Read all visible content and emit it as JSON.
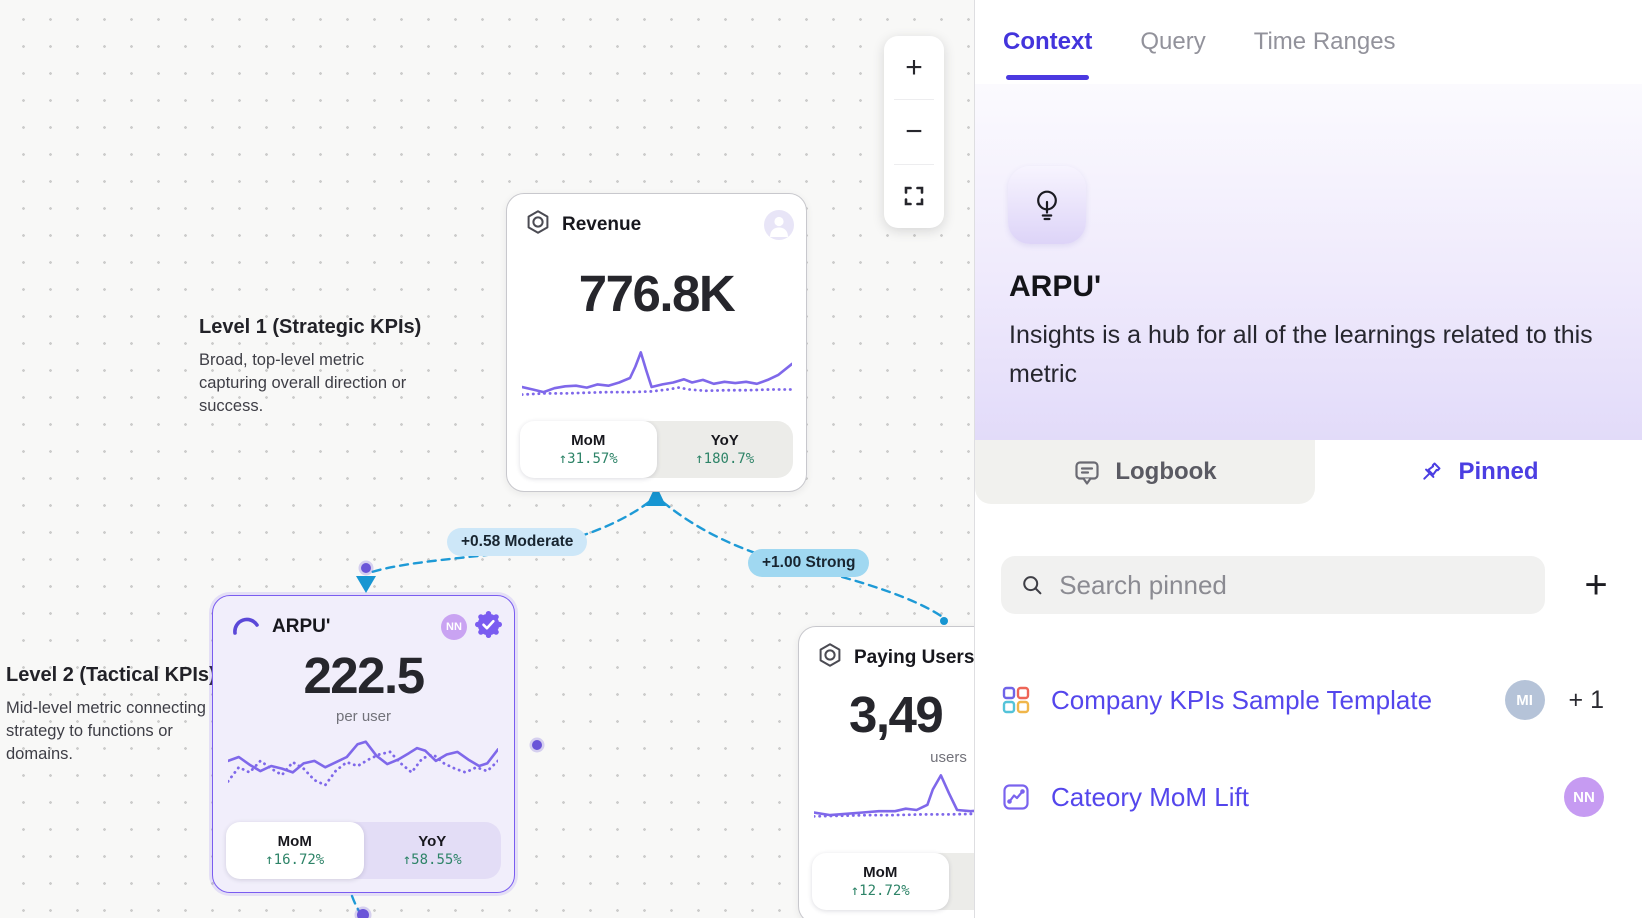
{
  "colors": {
    "accent_purple": "#5b4df0",
    "edge_blue": "#1e9ad6",
    "positive_green": "#2e8468",
    "link_purple": "#5446ec"
  },
  "panel": {
    "tabs": [
      {
        "label": "Context"
      },
      {
        "label": "Query"
      },
      {
        "label": "Time Ranges"
      }
    ],
    "hero": {
      "title": "ARPU'",
      "description": "Insights is a hub for all of the learnings related to this metric"
    },
    "sub_tabs": {
      "logbook": "Logbook",
      "pinned": "Pinned"
    },
    "search": {
      "placeholder": "Search pinned"
    },
    "add_button": "+",
    "pinned_items": [
      {
        "label": "Company KPIs Sample Template",
        "avatar": "MI",
        "extra": "+ 1"
      },
      {
        "label": "Cateory MoM Lift",
        "avatar": "NN",
        "extra": ""
      }
    ]
  },
  "canvas": {
    "zoom_toolbar": {
      "zoom_in": "+",
      "zoom_out": "−"
    },
    "levels": [
      {
        "title": "Level 1 (Strategic KPIs)",
        "description": "Broad, top-level metric capturing overall direction or success."
      },
      {
        "title": "Level 2 (Tactical KPIs)",
        "description": "Mid-level metric connecting strategy to functions or domains."
      }
    ],
    "edge_labels": {
      "left": "+0.58 Moderate",
      "right": "+1.00 Strong"
    },
    "cards": [
      {
        "title": "Revenue",
        "value": "776.8K",
        "unit": "",
        "badge": "",
        "metrics": [
          {
            "label": "MoM",
            "delta": "↑31.57%"
          },
          {
            "label": "YoY",
            "delta": "↑180.7%"
          }
        ],
        "sparkline": {
          "solid": [
            [
              0,
              64
            ],
            [
              4,
              68
            ],
            [
              8,
              72
            ],
            [
              12,
              66
            ],
            [
              16,
              63
            ],
            [
              20,
              62
            ],
            [
              24,
              65
            ],
            [
              28,
              60
            ],
            [
              32,
              62
            ],
            [
              36,
              57
            ],
            [
              40,
              50
            ],
            [
              42,
              32
            ],
            [
              44,
              10
            ],
            [
              46,
              38
            ],
            [
              48,
              64
            ],
            [
              52,
              60
            ],
            [
              56,
              57
            ],
            [
              60,
              52
            ],
            [
              63,
              57
            ],
            [
              67,
              53
            ],
            [
              71,
              59
            ],
            [
              75,
              56
            ],
            [
              79,
              58
            ],
            [
              83,
              56
            ],
            [
              87,
              59
            ],
            [
              91,
              53
            ],
            [
              95,
              45
            ],
            [
              100,
              28
            ]
          ],
          "dotted": [
            [
              0,
              76
            ],
            [
              8,
              74
            ],
            [
              16,
              74
            ],
            [
              24,
              73
            ],
            [
              32,
              72
            ],
            [
              40,
              72
            ],
            [
              48,
              71
            ],
            [
              54,
              68
            ],
            [
              58,
              65
            ],
            [
              62,
              68
            ],
            [
              68,
              70
            ],
            [
              76,
              69
            ],
            [
              84,
              69
            ],
            [
              92,
              68
            ],
            [
              100,
              68
            ]
          ]
        }
      },
      {
        "title": "ARPU'",
        "value": "222.5",
        "unit": "per user",
        "badge": "NN",
        "metrics": [
          {
            "label": "MoM",
            "delta": "↑16.72%"
          },
          {
            "label": "YoY",
            "delta": "↑58.55%"
          }
        ],
        "sparkline": {
          "solid": [
            [
              0,
              42
            ],
            [
              4,
              36
            ],
            [
              8,
              48
            ],
            [
              12,
              58
            ],
            [
              16,
              50
            ],
            [
              20,
              54
            ],
            [
              24,
              60
            ],
            [
              28,
              46
            ],
            [
              32,
              42
            ],
            [
              36,
              52
            ],
            [
              40,
              44
            ],
            [
              44,
              36
            ],
            [
              48,
              16
            ],
            [
              51,
              12
            ],
            [
              55,
              34
            ],
            [
              59,
              47
            ],
            [
              63,
              40
            ],
            [
              67,
              30
            ],
            [
              70,
              22
            ],
            [
              73,
              26
            ],
            [
              77,
              42
            ],
            [
              81,
              32
            ],
            [
              85,
              28
            ],
            [
              89,
              40
            ],
            [
              93,
              50
            ],
            [
              96,
              46
            ],
            [
              100,
              24
            ]
          ],
          "dotted": [
            [
              0,
              74
            ],
            [
              4,
              52
            ],
            [
              8,
              60
            ],
            [
              12,
              42
            ],
            [
              16,
              54
            ],
            [
              20,
              64
            ],
            [
              24,
              44
            ],
            [
              28,
              54
            ],
            [
              32,
              72
            ],
            [
              36,
              80
            ],
            [
              40,
              57
            ],
            [
              44,
              44
            ],
            [
              48,
              50
            ],
            [
              52,
              40
            ],
            [
              56,
              32
            ],
            [
              60,
              28
            ],
            [
              64,
              46
            ],
            [
              68,
              60
            ],
            [
              72,
              38
            ],
            [
              76,
              32
            ],
            [
              80,
              46
            ],
            [
              84,
              54
            ],
            [
              88,
              60
            ],
            [
              92,
              52
            ],
            [
              96,
              58
            ],
            [
              100,
              42
            ]
          ]
        }
      },
      {
        "title": "Paying Users'",
        "value": "3,49",
        "unit": "users",
        "badge": "",
        "metrics": [
          {
            "label": "MoM",
            "delta": "↑12.72%"
          },
          {
            "label": "",
            "delta": ""
          }
        ],
        "sparkline": {
          "solid": [
            [
              0,
              68
            ],
            [
              6,
              72
            ],
            [
              12,
              70
            ],
            [
              18,
              68
            ],
            [
              24,
              66
            ],
            [
              30,
              66
            ],
            [
              34,
              62
            ],
            [
              38,
              64
            ],
            [
              42,
              56
            ],
            [
              44,
              32
            ],
            [
              47,
              10
            ],
            [
              50,
              38
            ],
            [
              53,
              64
            ],
            [
              58,
              66
            ],
            [
              64,
              64
            ],
            [
              70,
              66
            ],
            [
              76,
              62
            ],
            [
              82,
              65
            ],
            [
              88,
              62
            ],
            [
              94,
              64
            ],
            [
              100,
              60
            ]
          ],
          "dotted": [
            [
              0,
              74
            ],
            [
              10,
              73
            ],
            [
              20,
              72
            ],
            [
              30,
              72
            ],
            [
              40,
              71
            ],
            [
              50,
              71
            ],
            [
              60,
              70
            ],
            [
              70,
              70
            ],
            [
              80,
              69
            ],
            [
              90,
              69
            ],
            [
              100,
              68
            ]
          ]
        }
      }
    ]
  }
}
